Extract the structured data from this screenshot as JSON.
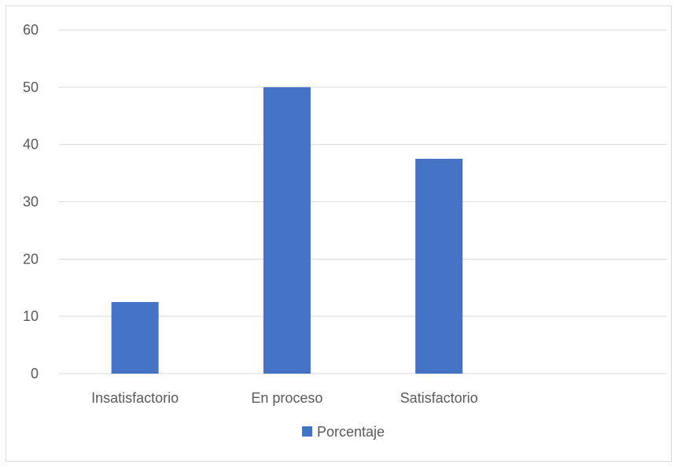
{
  "chart_data": {
    "type": "bar",
    "categories": [
      "Insatisfactorio",
      "En proceso",
      "Satisfactorio",
      ""
    ],
    "series": [
      {
        "name": "Porcentaje",
        "values": [
          12.5,
          50,
          37.5,
          null
        ],
        "color": "#4472c4"
      }
    ],
    "ylim": [
      0,
      60
    ],
    "yticks": [
      0,
      10,
      20,
      30,
      40,
      50,
      60
    ],
    "grid": true,
    "legend": "bottom",
    "title": "",
    "xlabel": "",
    "ylabel": ""
  }
}
